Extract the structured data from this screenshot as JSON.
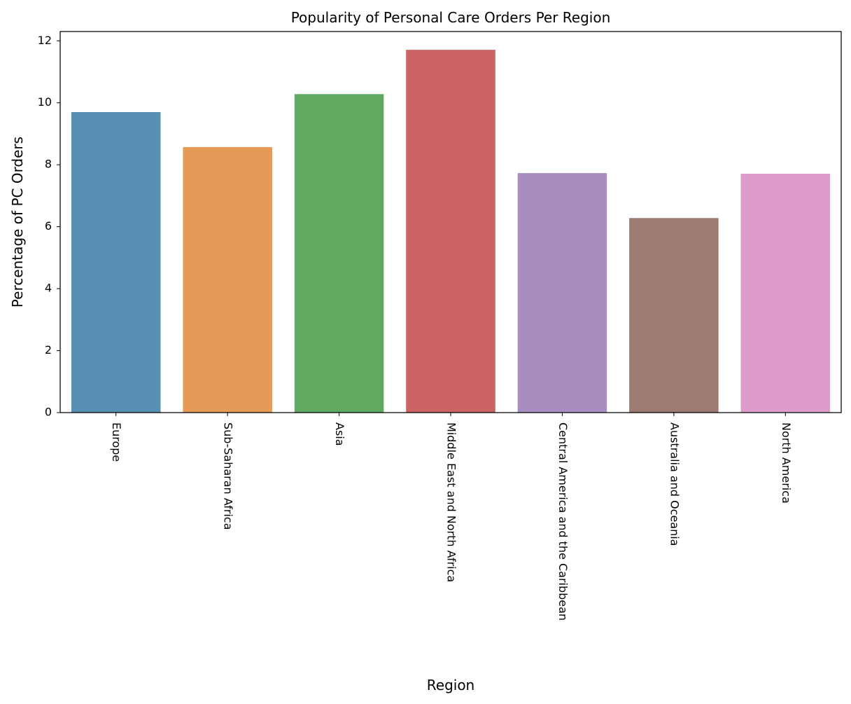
{
  "chart_data": {
    "type": "bar",
    "title": "Popularity of Personal Care Orders Per Region",
    "xlabel": "Region",
    "ylabel": "Percentage of PC Orders",
    "categories": [
      "Europe",
      "Sub-Saharan Africa",
      "Asia",
      "Middle East and North Africa",
      "Central America and the Caribbean",
      "Australia and Oceania",
      "North America"
    ],
    "values": [
      9.7,
      8.57,
      10.28,
      11.71,
      7.73,
      6.28,
      7.71
    ],
    "colors": [
      "#5a8fb4",
      "#e69a58",
      "#60a960",
      "#cb6462",
      "#a78dc0",
      "#9c7b72",
      "#dd9bca"
    ],
    "ylim": [
      0,
      12.3
    ],
    "yticks": [
      0,
      2,
      4,
      6,
      8,
      10,
      12
    ],
    "grid": false,
    "legend": "none"
  }
}
